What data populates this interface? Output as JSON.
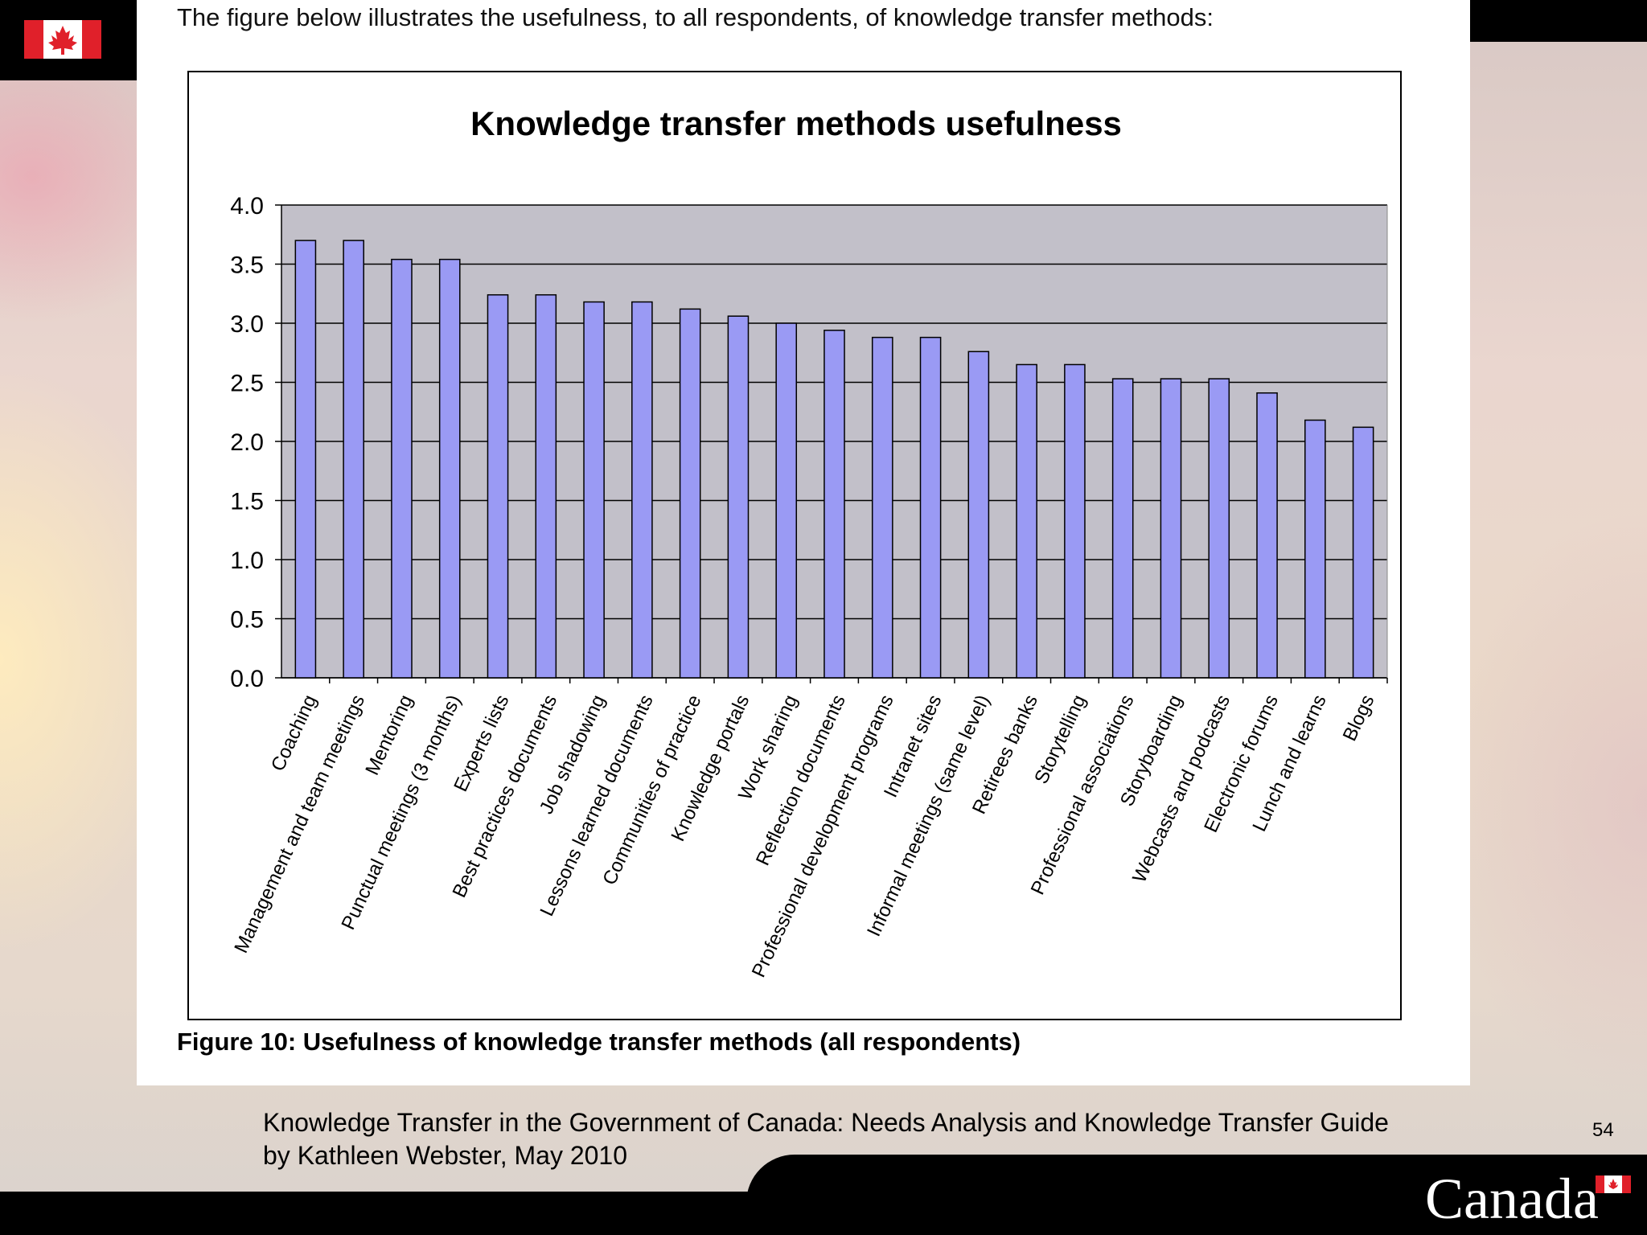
{
  "header": {
    "colors": {
      "bar": "#000000",
      "flag_red": "#e0202a",
      "flag_white": "#ffffff"
    },
    "flag_icon": "canada-flag-icon"
  },
  "document": {
    "intro_text": "The figure below illustrates the usefulness, to all respondents, of knowledge transfer methods:",
    "caption": "Figure 10: Usefulness of knowledge transfer methods (all respondents)"
  },
  "footer": {
    "source_line1": "Knowledge Transfer in the Government of Canada: Needs Analysis and Knowledge Transfer Guide",
    "source_line2": "by Kathleen Webster, May 2010",
    "page_number": "54",
    "wordmark": "Canada"
  },
  "chart_data": {
    "type": "bar",
    "title": "Knowledge transfer methods usefulness",
    "xlabel": "",
    "ylabel": "",
    "ylim": [
      0,
      4
    ],
    "yticks": [
      "0.0",
      "0.5",
      "1.0",
      "1.5",
      "2.0",
      "2.5",
      "3.0",
      "3.5",
      "4.0"
    ],
    "grid": true,
    "legend": "none",
    "colors": {
      "bar": "#9a9af4",
      "plot_bg": "#c2c0c9",
      "grid": "#000000"
    },
    "categories": [
      "Coaching",
      "Management and team meetings",
      "Mentoring",
      "Punctual meetings (3 months)",
      "Experts lists",
      "Best practices documents",
      "Job shadowing",
      "Lessons learned documents",
      "Communities of practice",
      "Knowledge portals",
      "Work sharing",
      "Reflection documents",
      "Professional development programs",
      "Intranet sites",
      "Informal meetings (same level)",
      "Retirees banks",
      "Storytelling",
      "Professional associations",
      "Storyboarding",
      "Webcasts and podcasts",
      "Electronic forums",
      "Lunch and learns",
      "Blogs"
    ],
    "values": [
      3.7,
      3.7,
      3.54,
      3.54,
      3.24,
      3.24,
      3.18,
      3.18,
      3.12,
      3.06,
      3.0,
      2.94,
      2.88,
      2.88,
      2.76,
      2.65,
      2.65,
      2.53,
      2.53,
      2.53,
      2.41,
      2.18,
      2.12
    ]
  }
}
